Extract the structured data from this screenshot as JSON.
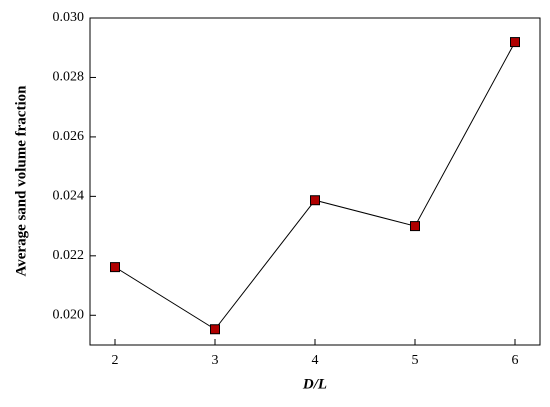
{
  "chart_data": {
    "type": "line",
    "x_label": "D/L",
    "y_label": "Average sand volume fraction",
    "x": [
      2,
      3,
      4,
      5,
      6
    ],
    "series": [
      {
        "color": "#b00000",
        "values": [
          0.02162,
          0.01953,
          0.02387,
          0.023,
          0.02919
        ]
      }
    ],
    "xlim": [
      1.75,
      6.25
    ],
    "xticks": [
      2,
      3,
      4,
      5,
      6
    ],
    "ylim": [
      0.019,
      0.03
    ],
    "yticks": [
      {
        "value": 0.02,
        "label": "0.020"
      },
      {
        "value": 0.022,
        "label": "0.022"
      },
      {
        "value": 0.024,
        "label": "0.024"
      },
      {
        "value": 0.026,
        "label": "0.026"
      },
      {
        "value": 0.028,
        "label": "0.028"
      },
      {
        "value": 0.03,
        "label": "0.030"
      }
    ]
  }
}
